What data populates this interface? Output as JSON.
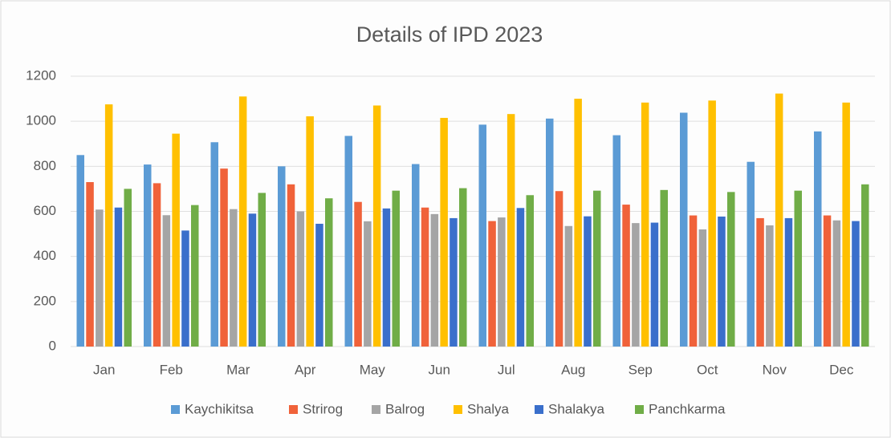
{
  "chart_data": {
    "type": "bar",
    "title": "Details of IPD 2023",
    "categories": [
      "Jan",
      "Feb",
      "Mar",
      "Apr",
      "May",
      "Jun",
      "Jul",
      "Aug",
      "Sep",
      "Oct",
      "Nov",
      "Dec"
    ],
    "series": [
      {
        "name": "Kaychikitsa",
        "color": "#5b9bd5",
        "values": [
          850,
          808,
          907,
          800,
          935,
          810,
          985,
          1012,
          938,
          1038,
          820,
          955
        ]
      },
      {
        "name": "Strirog",
        "color": "#f0623a",
        "values": [
          730,
          725,
          790,
          720,
          642,
          617,
          557,
          690,
          630,
          582,
          570,
          582
        ]
      },
      {
        "name": "Balrog",
        "color": "#a5a5a5",
        "values": [
          608,
          583,
          610,
          600,
          556,
          588,
          573,
          535,
          548,
          520,
          538,
          560
        ]
      },
      {
        "name": "Shalya",
        "color": "#ffc000",
        "values": [
          1075,
          945,
          1110,
          1022,
          1070,
          1015,
          1032,
          1100,
          1083,
          1092,
          1123,
          1083
        ]
      },
      {
        "name": "Shalakya",
        "color": "#3a6fcb",
        "values": [
          617,
          515,
          590,
          545,
          613,
          570,
          615,
          578,
          550,
          577,
          570,
          557
        ]
      },
      {
        "name": "Panchkarma",
        "color": "#70ad47",
        "values": [
          700,
          628,
          682,
          658,
          692,
          703,
          672,
          692,
          695,
          686,
          692,
          720
        ]
      }
    ],
    "ylim": [
      0,
      1200
    ],
    "yticks": [
      0,
      200,
      400,
      600,
      800,
      1000,
      1200
    ],
    "grid": true,
    "legend": "bottom"
  }
}
